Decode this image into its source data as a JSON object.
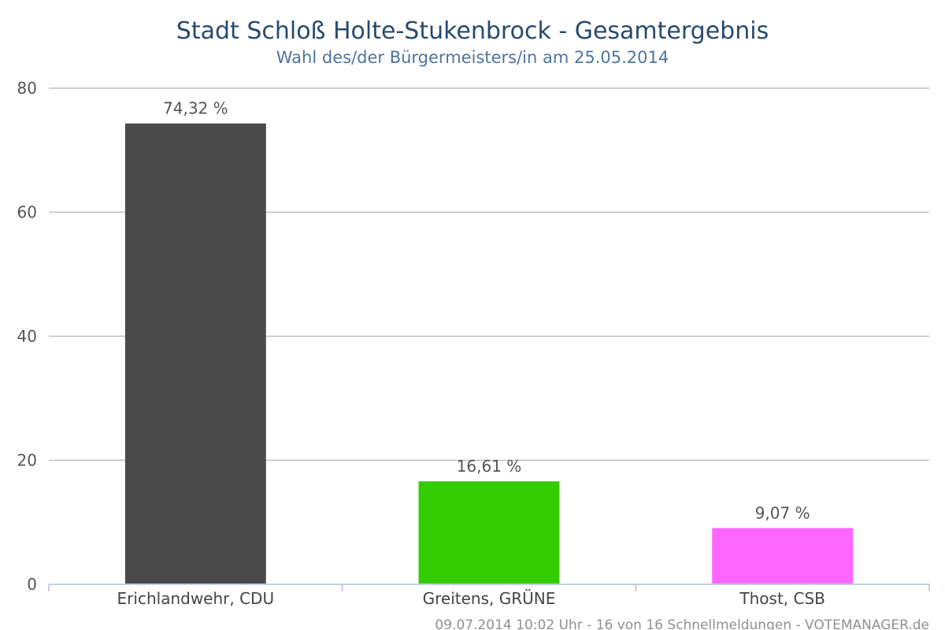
{
  "chart_data": {
    "type": "bar",
    "title": "Stadt Schloß Holte-Stukenbrock - Gesamtergebnis",
    "subtitle": "Wahl des/der Bürgermeisters/in am 25.05.2014",
    "categories": [
      "Erichlandwehr, CDU",
      "Greitens, GRÜNE",
      "Thost, CSB"
    ],
    "values": [
      74.32,
      16.61,
      9.07
    ],
    "data_labels": [
      "74,32 %",
      "16,61 %",
      "9,07 %"
    ],
    "colors": [
      "#4a4a4a",
      "#33cc00",
      "#ff66ff"
    ],
    "ylim": [
      0,
      80
    ],
    "yticks": [
      0,
      20,
      40,
      60,
      80
    ],
    "xlabel": "",
    "ylabel": "",
    "grid": true,
    "legend": "none"
  },
  "footer": {
    "credits": "09.07.2014 10:02 Uhr - 16 von 16 Schnellmeldungen - VOTEMANAGER.de"
  }
}
